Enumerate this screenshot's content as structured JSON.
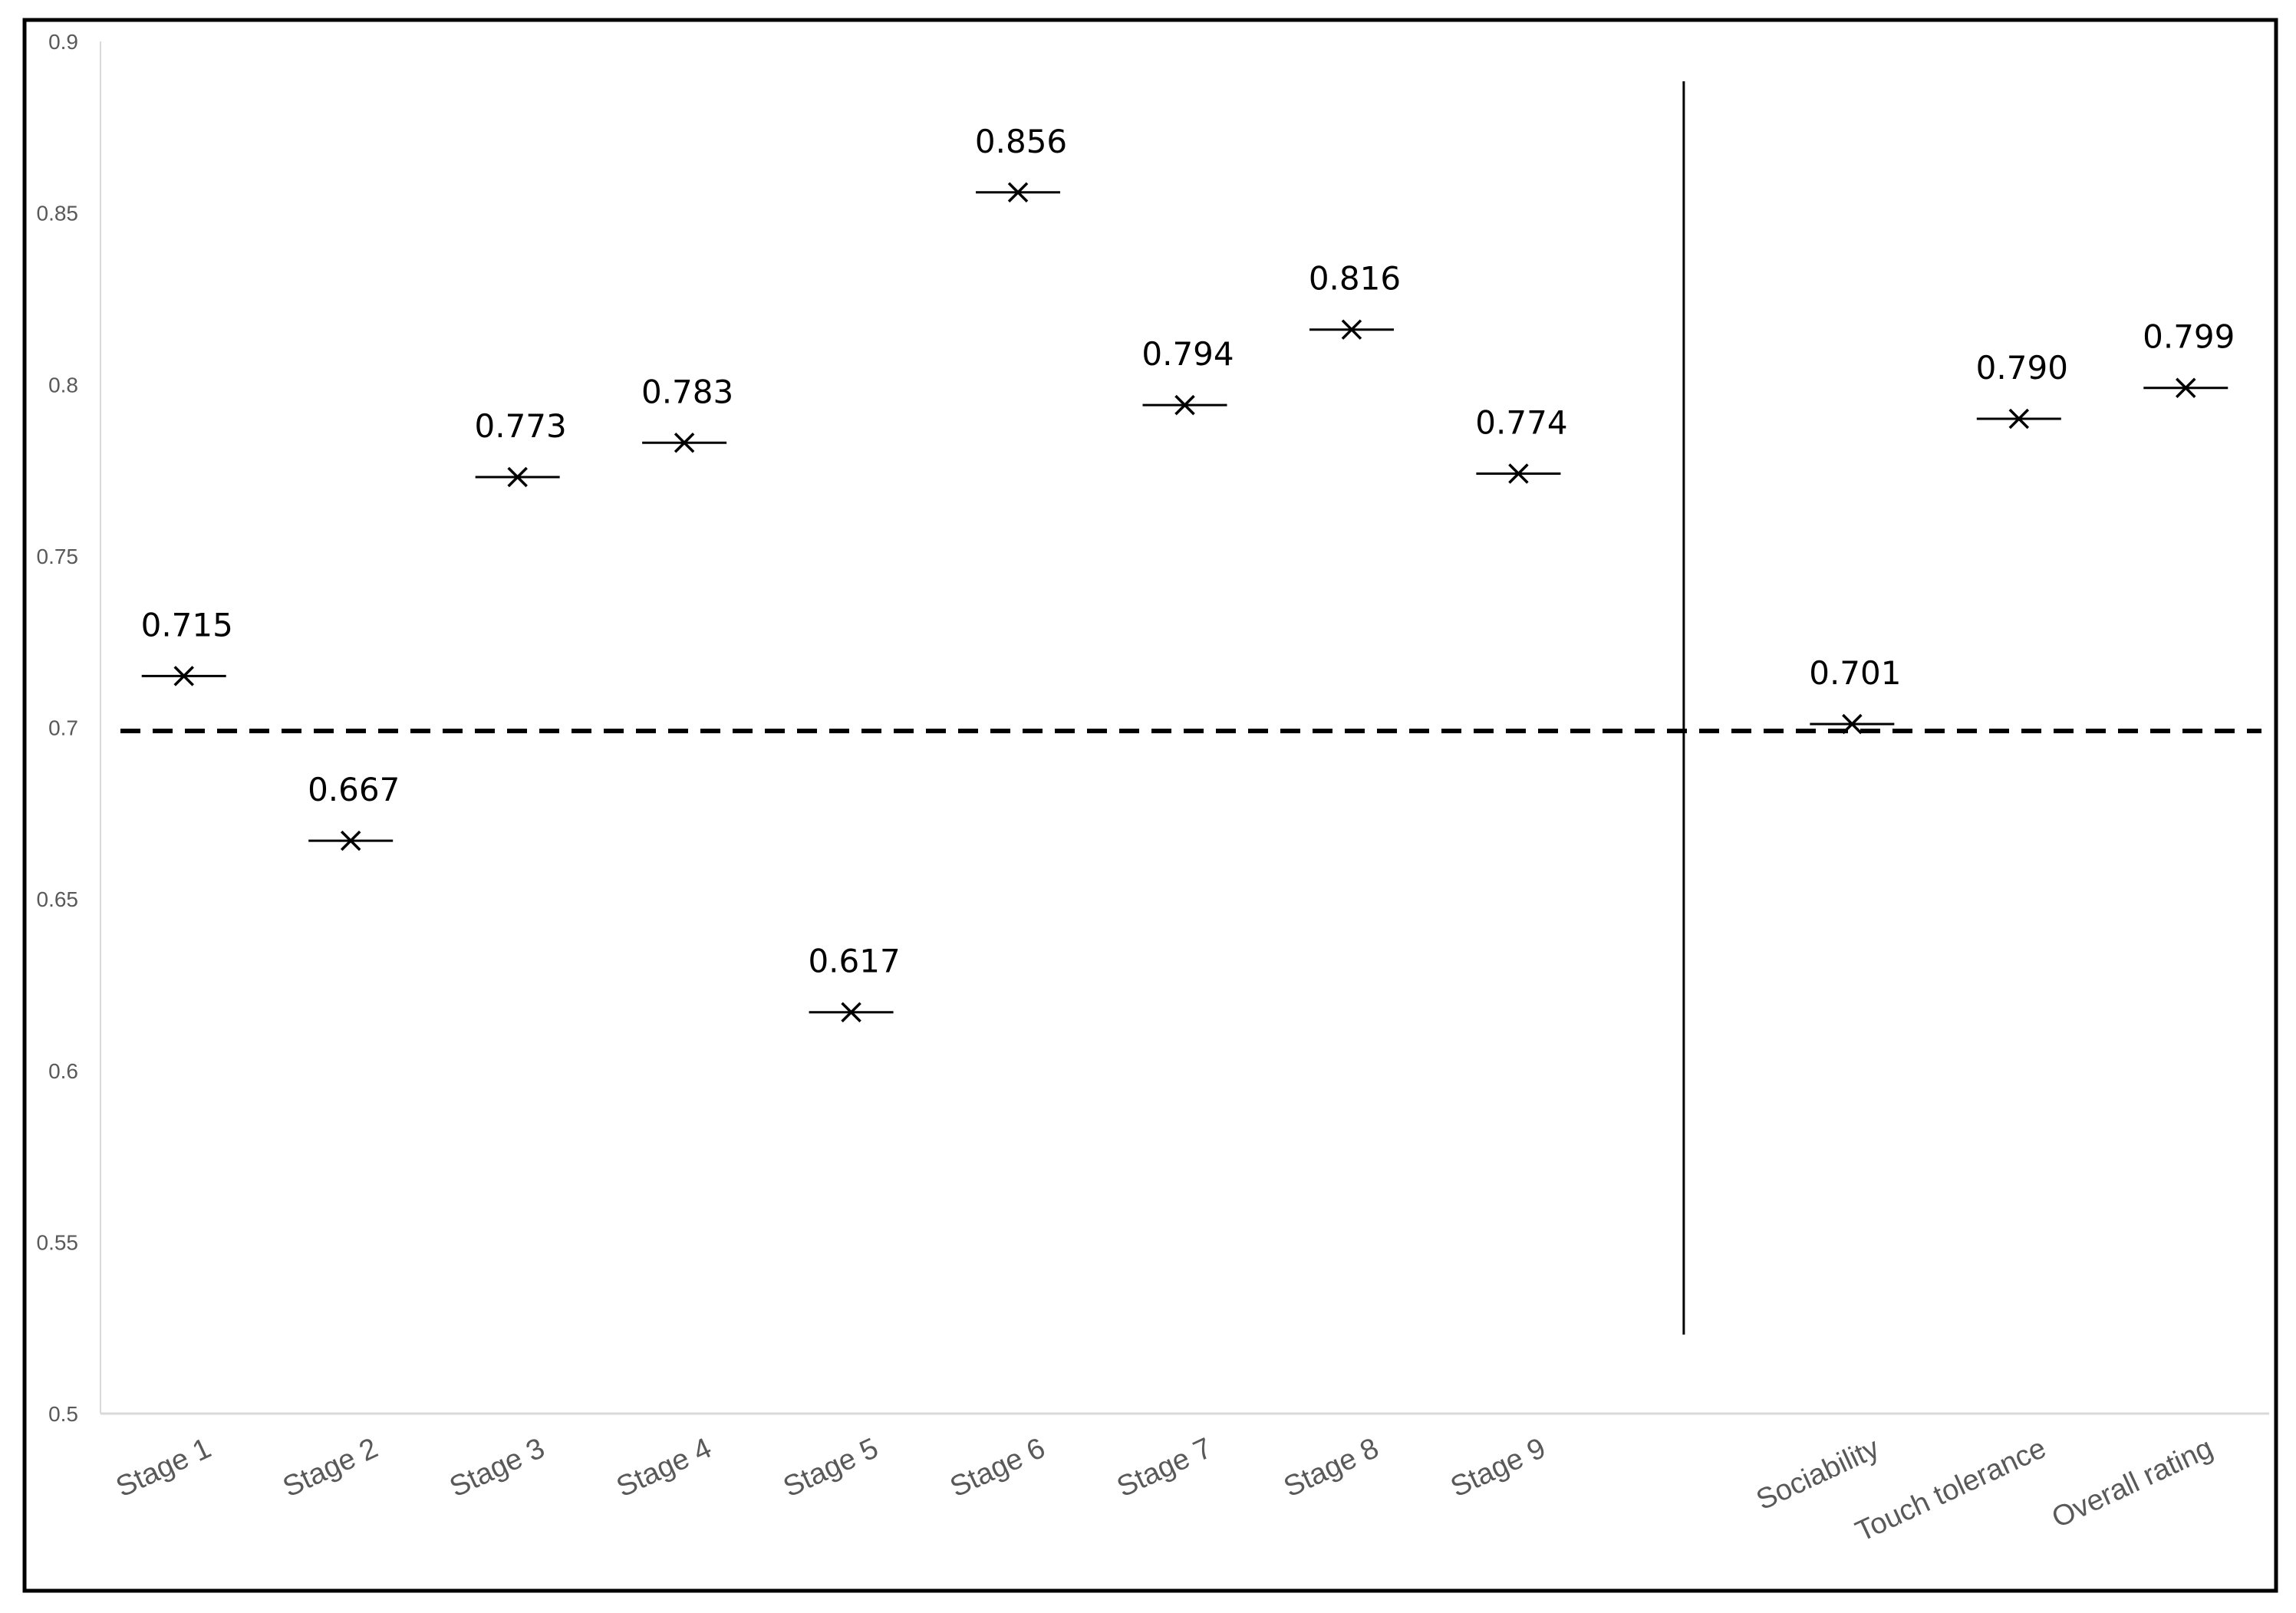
{
  "chart_data": {
    "type": "scatter",
    "title": "",
    "xlabel": "",
    "ylabel": "",
    "ylim": [
      0.5,
      0.9
    ],
    "y_ticks": [
      "0.5",
      "0.55",
      "0.6",
      "0.65",
      "0.7",
      "0.75",
      "0.8",
      "0.85",
      "0.9"
    ],
    "grid": false,
    "legend": "none",
    "marker": "x with horizontal bar",
    "categories": [
      "Stage 1",
      "Stage 2",
      "Stage 3",
      "Stage 4",
      "Stage 5",
      "Stage 6",
      "Stage 7",
      "Stage 8",
      "Stage 9",
      "",
      "Sociability",
      "Touch tolerance",
      "Overall rating"
    ],
    "values": [
      0.715,
      0.667,
      0.773,
      0.783,
      0.617,
      0.856,
      0.794,
      0.816,
      0.774,
      null,
      0.701,
      0.79,
      0.799
    ],
    "data_labels": [
      "0.715",
      "0.667",
      "0.773",
      "0.783",
      "0.617",
      "0.856",
      "0.794",
      "0.816",
      "0.774",
      "",
      "0.701",
      "0.790",
      "0.799"
    ],
    "reference_line": {
      "y": 0.699,
      "style": "dashed"
    },
    "separator_after_category_index": 9,
    "colors": {
      "marker": "#000000",
      "axis": "#d9d9d9",
      "text": "#595959"
    }
  }
}
